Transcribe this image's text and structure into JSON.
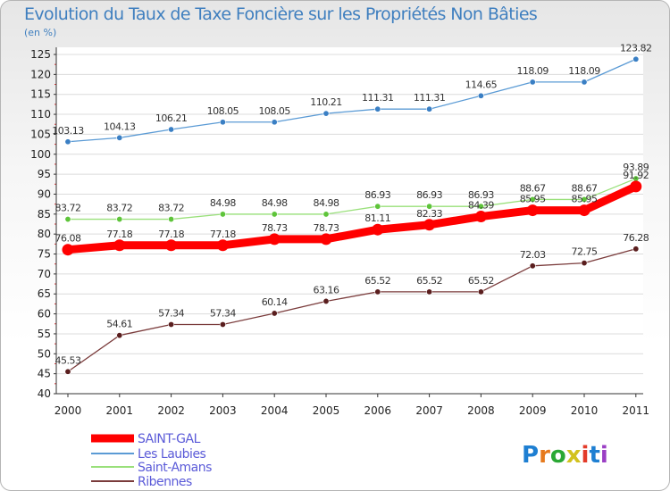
{
  "chart_data": {
    "type": "line",
    "title": "Evolution du Taux de Taxe Foncière sur les Propriétés Non Bâties",
    "subtitle": "(en %)",
    "x": [
      "2000",
      "2001",
      "2002",
      "2003",
      "2004",
      "2005",
      "2006",
      "2007",
      "2008",
      "2009",
      "2010",
      "2011"
    ],
    "ylim": [
      40,
      125
    ],
    "yticks": [
      40,
      45,
      50,
      55,
      60,
      65,
      70,
      75,
      80,
      85,
      90,
      95,
      100,
      105,
      110,
      115,
      120,
      125
    ],
    "grid": "horizontal",
    "legend_position": "bottom-left",
    "series": [
      {
        "name": "Les Laubies",
        "color": "#5b9bd5",
        "marker": "#3a7fc4",
        "values": [
          103.13,
          104.13,
          106.21,
          108.05,
          108.05,
          110.21,
          111.31,
          111.31,
          114.65,
          118.09,
          118.09,
          123.82
        ],
        "labels": [
          "103.13",
          "104.13",
          "106.21",
          "108.05",
          "108.05",
          "110.21",
          "111.31",
          "111.31",
          "114.65",
          "118.09",
          "118.09",
          "123.82"
        ]
      },
      {
        "name": "Saint-Amans",
        "color": "#99e07a",
        "marker": "#5ec43a",
        "values": [
          83.72,
          83.72,
          83.72,
          84.98,
          84.98,
          84.98,
          86.93,
          86.93,
          86.93,
          88.67,
          88.67,
          93.89
        ],
        "labels": [
          "83.72",
          "83.72",
          "83.72",
          "84.98",
          "84.98",
          "84.98",
          "86.93",
          "86.93",
          "86.93",
          "88.67",
          "88.67",
          "93.89"
        ]
      },
      {
        "name": "SAINT-GAL",
        "color": "#ff0000",
        "marker": "#ff0000",
        "values": [
          76.08,
          77.18,
          77.18,
          77.18,
          78.73,
          78.73,
          81.11,
          82.33,
          84.39,
          85.95,
          85.95,
          91.92
        ],
        "labels": [
          "76.08",
          "77.18",
          "77.18",
          "77.18",
          "78.73",
          "78.73",
          "81.11",
          "82.33",
          "84.39",
          "85.95",
          "85.95",
          "91.92"
        ]
      },
      {
        "name": "Ribennes",
        "color": "#7a3b3b",
        "marker": "#5a1e1e",
        "values": [
          45.53,
          54.61,
          57.34,
          57.34,
          60.14,
          63.16,
          65.52,
          65.52,
          65.52,
          72.03,
          72.75,
          76.28
        ],
        "labels": [
          "45.53",
          "54.61",
          "57.34",
          "57.34",
          "60.14",
          "63.16",
          "65.52",
          "65.52",
          "65.52",
          "72.03",
          "72.75",
          "76.28"
        ]
      }
    ],
    "legend": [
      "SAINT-GAL",
      "Les Laubies",
      "Saint-Amans",
      "Ribennes"
    ]
  },
  "brand": {
    "logo_text": "Proxiti"
  }
}
